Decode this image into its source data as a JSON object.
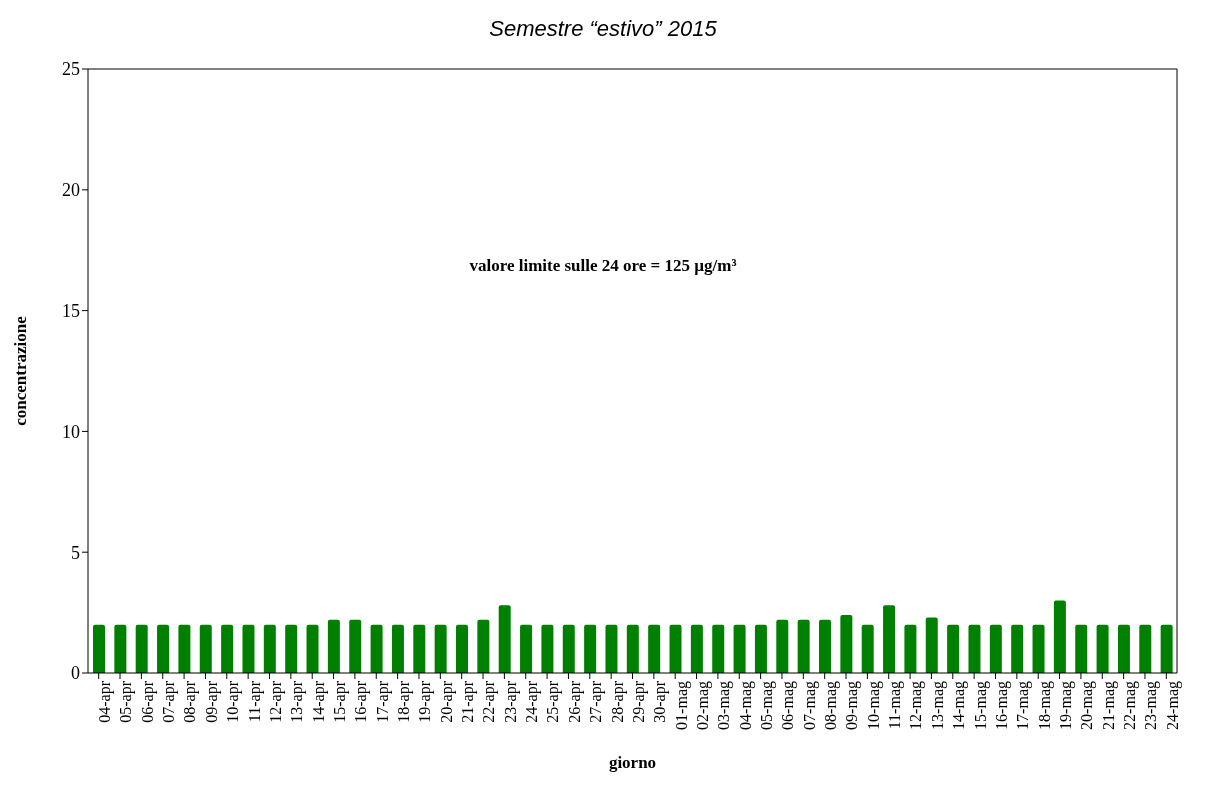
{
  "chart_data": {
    "type": "bar",
    "title": "Semestre “estivo” 2015",
    "xlabel": "giorno",
    "ylabel": "concentrazione",
    "annotations": [
      "valore limite sulle 24 ore = 125 µg/m³"
    ],
    "categories": [
      "04-apr",
      "05-apr",
      "06-apr",
      "07-apr",
      "08-apr",
      "09-apr",
      "10-apr",
      "11-apr",
      "12-apr",
      "13-apr",
      "14-apr",
      "15-apr",
      "16-apr",
      "17-apr",
      "18-apr",
      "19-apr",
      "20-apr",
      "21-apr",
      "22-apr",
      "23-apr",
      "24-apr",
      "25-apr",
      "26-apr",
      "27-apr",
      "28-apr",
      "29-apr",
      "30-apr",
      "01-mag",
      "02-mag",
      "03-mag",
      "04-mag",
      "05-mag",
      "06-mag",
      "07-mag",
      "08-mag",
      "09-mag",
      "10-mag",
      "11-mag",
      "12-mag",
      "13-mag",
      "14-mag",
      "15-mag",
      "16-mag",
      "17-mag",
      "18-mag",
      "19-mag",
      "20-mag",
      "21-mag",
      "22-mag",
      "23-mag",
      "24-mag"
    ],
    "values": [
      2,
      2,
      2,
      2,
      2,
      2,
      2,
      2,
      2,
      2,
      2,
      2.2,
      2.2,
      2,
      2,
      2,
      2,
      2,
      2.2,
      2.8,
      2,
      2,
      2,
      2,
      2,
      2,
      2,
      2,
      2,
      2,
      2,
      2,
      2.2,
      2.2,
      2.2,
      2.4,
      2,
      2.8,
      2,
      2.3,
      2,
      2,
      2,
      2,
      2,
      3,
      2,
      2,
      2,
      2,
      2
    ],
    "color": "#008000",
    "ylim": [
      0,
      25
    ],
    "yticks": [
      0,
      5,
      10,
      15,
      20,
      25
    ]
  }
}
